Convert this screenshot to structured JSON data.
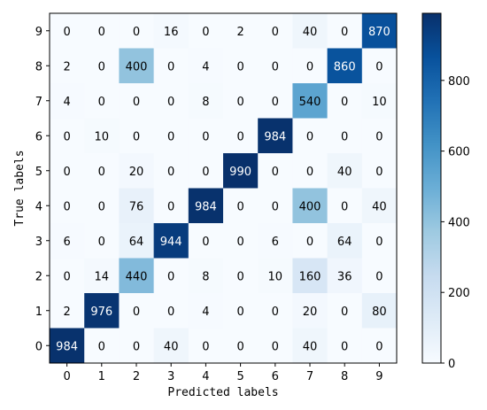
{
  "chart_data": {
    "type": "heatmap",
    "xlabel": "Predicted labels",
    "ylabel": "True labels",
    "x_categories": [
      "0",
      "1",
      "2",
      "3",
      "4",
      "5",
      "6",
      "7",
      "8",
      "9"
    ],
    "y_categories": [
      "9",
      "8",
      "7",
      "6",
      "5",
      "4",
      "3",
      "2",
      "1",
      "0"
    ],
    "matrix": [
      [
        0,
        0,
        0,
        16,
        0,
        2,
        0,
        40,
        0,
        870
      ],
      [
        2,
        0,
        400,
        0,
        4,
        0,
        0,
        0,
        860,
        0
      ],
      [
        4,
        0,
        0,
        0,
        8,
        0,
        0,
        540,
        0,
        10
      ],
      [
        0,
        10,
        0,
        0,
        0,
        0,
        984,
        0,
        0,
        0
      ],
      [
        0,
        0,
        20,
        0,
        0,
        990,
        0,
        0,
        40,
        0
      ],
      [
        0,
        0,
        76,
        0,
        984,
        0,
        0,
        400,
        0,
        40
      ],
      [
        6,
        0,
        64,
        944,
        0,
        0,
        6,
        0,
        64,
        0
      ],
      [
        0,
        14,
        440,
        0,
        8,
        0,
        10,
        160,
        36,
        0
      ],
      [
        2,
        976,
        0,
        0,
        4,
        0,
        0,
        20,
        0,
        80
      ],
      [
        984,
        0,
        0,
        40,
        0,
        0,
        0,
        40,
        0,
        0
      ]
    ],
    "colormap": "Blues",
    "vmin": 0,
    "vmax": 990,
    "colorbar_ticks": [
      0,
      200,
      400,
      600,
      800
    ],
    "colors": {
      "low": "#f7fbff",
      "high": "#08306b"
    }
  }
}
